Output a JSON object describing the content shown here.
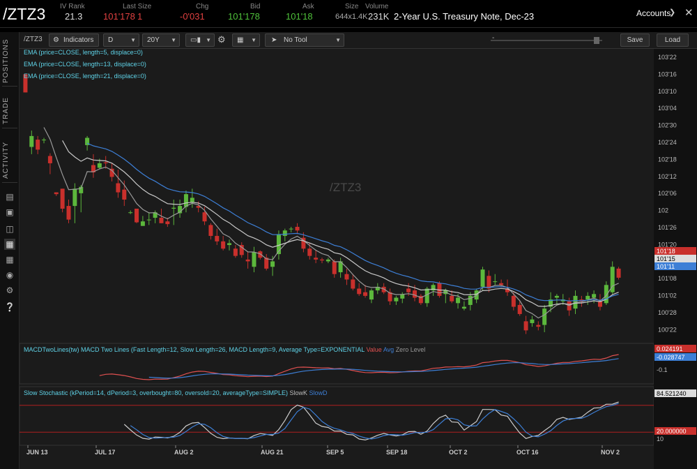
{
  "header": {
    "symbol": "/ZTZ3",
    "iv_rank_label": "IV Rank",
    "iv_rank": "21.3",
    "last_size_label": "Last Size",
    "last": "101'178",
    "last_size": "1",
    "chg_label": "Chg",
    "chg": "-0'031",
    "bid_label": "Bid",
    "bid": "101'178",
    "ask_label": "Ask",
    "ask": "101'18",
    "size_label": "Size",
    "size": "644x1.4K",
    "volume_label": "Volume",
    "volume": "231K",
    "description": "2-Year U.S. Treasury Note, Dec-23",
    "accounts_label": "Accounts"
  },
  "side_tabs": [
    "POSITIONS",
    "TRADE",
    "ACTIVITY"
  ],
  "side_icons": [
    "list-icon",
    "monitor-icon",
    "chart-icon",
    "grid-icon",
    "dashboard-icon",
    "gear-icon",
    "help-icon"
  ],
  "toolbar": {
    "symbol": "/ZTZ3",
    "indicators": "Indicators",
    "aggregation": "D",
    "period": "20Y",
    "drawing_tool": "No Tool",
    "save": "Save",
    "load": "Load",
    "zoom_minus": "-"
  },
  "studies": {
    "ema5": "EMA (price=CLOSE, length=5, displace=0)",
    "ema13": "EMA (price=CLOSE, length=13, displace=0)",
    "ema21": "EMA (price=CLOSE, length=21, displace=0)",
    "macd_title": "MACDTwoLines(tw) MACD Two Lines (Fast Length=12, Slow Length=26, MACD Length=9, Average Type=EXPONENTIAL",
    "macd_value": "Value",
    "macd_avg": "Avg",
    "macd_zero": "Zero Level",
    "stoch_title": "Slow Stochastic (kPeriod=14, dPeriod=3, overbought=80, oversold=20, averageType=SIMPLE)",
    "stoch_k": "SlowK",
    "stoch_d": "SlowD"
  },
  "watermark": "/ZTZ3",
  "colors": {
    "up": "#5cb83c",
    "down": "#c9302c",
    "ema5": "#9a9a9a",
    "ema13": "#c8c8c8",
    "ema21": "#3d7fd6",
    "macd_value": "#e05050",
    "macd_avg": "#3d7fd6",
    "stoch_k": "#cccccc",
    "stoch_d": "#3d7fd6",
    "level_line": "#b02020"
  },
  "chart_data": {
    "type": "candlestick",
    "price_axis": [
      "103'22",
      "103'16",
      "103'10",
      "103'04",
      "102'30",
      "102'24",
      "102'18",
      "102'12",
      "102'06",
      "102",
      "101'26",
      "101'20",
      "101'14",
      "101'08",
      "101'02",
      "100'28",
      "100'22"
    ],
    "price_tags": [
      {
        "text": "101'18",
        "color": "#c9302c"
      },
      {
        "text": "101'15",
        "color": "#ffffff"
      },
      {
        "text": "101'11",
        "color": "#3d7fd6"
      }
    ],
    "x_labels": [
      "JUN 13",
      "JUL 17",
      "AUG 2",
      "AUG 21",
      "SEP 5",
      "SEP 18",
      "OCT 2",
      "OCT 16",
      "NOV 2"
    ],
    "macd_axis": [
      "0.024191",
      "-0.028747",
      "-0.1"
    ],
    "stoch_axis": [
      "84.521240",
      "20.000000",
      "10"
    ],
    "ohlc": [
      [
        103.5,
        103.5,
        103.3,
        103.3
      ],
      [
        102.7,
        102.88,
        102.62,
        102.82
      ],
      [
        102.78,
        102.82,
        102.62,
        102.67
      ],
      [
        102.78,
        102.8,
        102.74,
        102.78
      ],
      [
        102.6,
        102.63,
        102.4,
        102.52
      ],
      [
        102.2,
        102.2,
        102.16,
        102.18
      ],
      [
        102.24,
        102.24,
        101.98,
        102.02
      ],
      [
        102.05,
        102.12,
        101.86,
        101.9
      ],
      [
        102.05,
        102.3,
        101.86,
        102.24
      ],
      [
        102.19,
        102.28,
        101.98,
        102.26
      ],
      [
        102.72,
        102.82,
        102.66,
        102.8
      ],
      [
        102.5,
        102.62,
        102.36,
        102.42
      ],
      [
        102.47,
        102.57,
        102.46,
        102.52
      ],
      [
        102.53,
        102.6,
        102.46,
        102.52
      ],
      [
        102.46,
        102.52,
        102.32,
        102.37
      ],
      [
        102.3,
        102.45,
        102.14,
        102.2
      ],
      [
        102.23,
        102.33,
        102.05,
        102.12
      ],
      [
        101.98,
        102.0,
        101.96,
        101.98
      ],
      [
        102.02,
        102.02,
        101.86,
        101.87
      ],
      [
        101.83,
        101.94,
        101.83,
        101.88
      ],
      [
        101.9,
        101.98,
        101.84,
        101.9
      ],
      [
        101.92,
        102.0,
        101.86,
        101.98
      ],
      [
        101.92,
        102.02,
        101.86,
        101.86
      ],
      [
        101.88,
        101.92,
        101.82,
        101.85
      ],
      [
        102.02,
        102.12,
        101.84,
        102.03
      ],
      [
        101.97,
        102.12,
        101.92,
        102.05
      ],
      [
        102.04,
        102.22,
        101.98,
        102.18
      ],
      [
        102.09,
        102.24,
        102.03,
        102.14
      ],
      [
        102.05,
        102.1,
        101.98,
        102.03
      ],
      [
        101.98,
        102.04,
        101.84,
        101.88
      ],
      [
        101.84,
        101.86,
        101.68,
        101.72
      ],
      [
        101.72,
        101.8,
        101.62,
        101.66
      ],
      [
        101.66,
        101.72,
        101.56,
        101.58
      ],
      [
        101.62,
        101.68,
        101.56,
        101.64
      ],
      [
        101.58,
        101.62,
        101.48,
        101.5
      ],
      [
        101.62,
        101.65,
        101.48,
        101.51
      ],
      [
        101.46,
        101.55,
        101.36,
        101.44
      ],
      [
        101.38,
        101.6,
        101.32,
        101.54
      ],
      [
        101.55,
        101.56,
        101.46,
        101.48
      ],
      [
        101.48,
        101.52,
        101.34,
        101.36
      ],
      [
        101.38,
        101.5,
        101.28,
        101.44
      ],
      [
        101.52,
        101.78,
        101.46,
        101.74
      ],
      [
        101.72,
        101.8,
        101.66,
        101.78
      ],
      [
        101.8,
        101.82,
        101.76,
        101.8
      ],
      [
        101.82,
        101.86,
        101.74,
        101.78
      ],
      [
        101.7,
        101.76,
        101.54,
        101.58
      ],
      [
        101.58,
        101.64,
        101.46,
        101.5
      ],
      [
        101.48,
        101.56,
        101.42,
        101.46
      ],
      [
        101.46,
        101.48,
        101.42,
        101.45
      ],
      [
        101.44,
        101.48,
        101.42,
        101.46
      ],
      [
        101.44,
        101.46,
        101.26,
        101.3
      ],
      [
        101.32,
        101.48,
        101.26,
        101.44
      ],
      [
        101.3,
        101.36,
        101.18,
        101.24
      ],
      [
        101.24,
        101.3,
        101.12,
        101.14
      ],
      [
        101.14,
        101.2,
        101.06,
        101.08
      ],
      [
        101.1,
        101.18,
        101.04,
        101.06
      ],
      [
        101.02,
        101.14,
        100.98,
        101.12
      ],
      [
        101.12,
        101.2,
        101.08,
        101.16
      ],
      [
        101.16,
        101.2,
        101.08,
        101.1
      ],
      [
        101.1,
        101.14,
        100.96,
        101.0
      ],
      [
        101.0,
        101.06,
        100.96,
        101.04
      ],
      [
        101.03,
        101.1,
        100.98,
        101.08
      ],
      [
        101.14,
        101.2,
        101.06,
        101.1
      ],
      [
        101.12,
        101.18,
        101.0,
        101.04
      ],
      [
        101.06,
        101.08,
        100.96,
        100.98
      ],
      [
        100.98,
        101.16,
        100.94,
        101.14
      ],
      [
        101.12,
        101.2,
        101.06,
        101.18
      ],
      [
        101.2,
        101.22,
        101.04,
        101.06
      ],
      [
        101.08,
        101.14,
        100.98,
        101.12
      ],
      [
        101.06,
        101.12,
        100.98,
        101.0
      ],
      [
        100.98,
        101.08,
        100.92,
        101.04
      ],
      [
        100.92,
        101.0,
        100.9,
        100.94
      ],
      [
        100.96,
        101.1,
        100.9,
        101.06
      ],
      [
        101.02,
        101.14,
        100.98,
        101.12
      ],
      [
        101.16,
        101.38,
        101.12,
        101.35
      ],
      [
        101.28,
        101.34,
        101.1,
        101.14
      ],
      [
        101.22,
        101.3,
        101.18,
        101.22
      ],
      [
        101.2,
        101.24,
        101.16,
        101.18
      ],
      [
        101.14,
        101.24,
        101.06,
        101.1
      ],
      [
        101.06,
        101.1,
        100.9,
        100.94
      ],
      [
        100.96,
        101.0,
        100.84,
        100.86
      ],
      [
        100.78,
        100.84,
        100.64,
        100.68
      ],
      [
        100.76,
        100.84,
        100.72,
        100.8
      ],
      [
        100.74,
        100.78,
        100.68,
        100.72
      ],
      [
        100.74,
        100.96,
        100.66,
        100.92
      ],
      [
        100.94,
        101.1,
        100.88,
        101.02
      ],
      [
        101.04,
        101.08,
        100.96,
        101.06
      ],
      [
        101.0,
        101.08,
        100.96,
        101.02
      ],
      [
        101.0,
        101.04,
        100.84,
        100.9
      ],
      [
        100.92,
        101.12,
        100.86,
        101.06
      ],
      [
        101.02,
        101.06,
        100.94,
        101.0
      ],
      [
        101.02,
        101.1,
        100.96,
        101.06
      ],
      [
        101.04,
        101.12,
        100.98,
        101.08
      ],
      [
        101.0,
        101.08,
        100.9,
        100.94
      ],
      [
        100.98,
        101.22,
        100.96,
        101.18
      ],
      [
        101.1,
        101.44,
        101.08,
        101.38
      ],
      [
        101.36,
        101.38,
        101.24,
        101.26
      ]
    ]
  }
}
